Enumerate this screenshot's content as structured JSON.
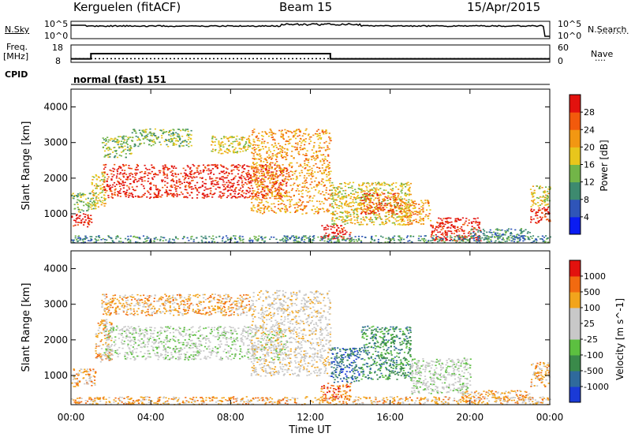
{
  "header": {
    "station": "Kerguelen (fitACF)",
    "beam": "Beam 15",
    "date": "15/Apr/2015"
  },
  "strip_labels": {
    "nsky": "N.Sky",
    "nsky_top": "10^5",
    "nsky_bottom": "10^0",
    "nsearch": "N.Search",
    "nsearch_top": "10^5",
    "nsearch_bottom": "10^0",
    "freq": "Freq.",
    "freq_unit": "[MHz]",
    "freq_top": "18",
    "freq_bottom": "8",
    "nave": "Nave",
    "nave_top": "60",
    "nave_bottom": "0",
    "cpid": "CPID",
    "cpid_value": "normal (fast) 151"
  },
  "chart_data": [
    {
      "type": "heatmap",
      "name": "power",
      "ylabel": "Slant Range [km]",
      "xlabel": "",
      "xlim": [
        0,
        24
      ],
      "ylim": [
        180,
        4500
      ],
      "yticks": [
        1000,
        2000,
        3000,
        4000
      ],
      "colorbar": {
        "label": "Power [dB]",
        "ticks": [
          "4",
          "8",
          "12",
          "16",
          "20",
          "24",
          "28"
        ],
        "colors": [
          "#0a1cf2",
          "#2f55b8",
          "#3d8a6f",
          "#72b548",
          "#e8c61c",
          "#f29712",
          "#f25a0c",
          "#e2120e"
        ]
      },
      "scatter_regions": [
        {
          "t": [
            0.0,
            1.0
          ],
          "r": [
            650,
            1050
          ],
          "level": 7
        },
        {
          "t": [
            0.0,
            1.2
          ],
          "r": [
            1050,
            1600
          ],
          "level": 3
        },
        {
          "t": [
            1.0,
            1.7
          ],
          "r": [
            1200,
            2200
          ],
          "level": 4
        },
        {
          "t": [
            1.6,
            10.8
          ],
          "r": [
            1450,
            2400
          ],
          "level": 7
        },
        {
          "t": [
            1.5,
            3.0
          ],
          "r": [
            2600,
            3200
          ],
          "level": 3
        },
        {
          "t": [
            3.0,
            6.0
          ],
          "r": [
            2900,
            3400
          ],
          "level": 3
        },
        {
          "t": [
            7.0,
            9.0
          ],
          "r": [
            2700,
            3200
          ],
          "level": 4
        },
        {
          "t": [
            9.0,
            13.0
          ],
          "r": [
            1000,
            3400
          ],
          "level": 5
        },
        {
          "t": [
            12.5,
            14.0
          ],
          "r": [
            300,
            700
          ],
          "level": 7
        },
        {
          "t": [
            13.0,
            17.0
          ],
          "r": [
            700,
            1900
          ],
          "level": 4
        },
        {
          "t": [
            14.5,
            16.5
          ],
          "r": [
            1000,
            1600
          ],
          "level": 6
        },
        {
          "t": [
            16.5,
            18.0
          ],
          "r": [
            700,
            1400
          ],
          "level": 5
        },
        {
          "t": [
            18.0,
            20.5
          ],
          "r": [
            250,
            900
          ],
          "level": 7
        },
        {
          "t": [
            20.0,
            23.0
          ],
          "r": [
            280,
            600
          ],
          "level": 2
        },
        {
          "t": [
            23.0,
            24.0
          ],
          "r": [
            750,
            1200
          ],
          "level": 7
        },
        {
          "t": [
            23.0,
            24.0
          ],
          "r": [
            1200,
            1800
          ],
          "level": 4
        },
        {
          "t": [
            0.0,
            24.0
          ],
          "r": [
            200,
            400
          ],
          "level": 2
        }
      ]
    },
    {
      "type": "heatmap",
      "name": "velocity",
      "ylabel": "Slant Range [km]",
      "xlabel": "Time UT",
      "xlim": [
        0,
        24
      ],
      "ylim": [
        180,
        4500
      ],
      "yticks": [
        1000,
        2000,
        3000,
        4000
      ],
      "xticks": [
        "00:00",
        "04:00",
        "08:00",
        "12:00",
        "16:00",
        "20:00",
        "00:00"
      ],
      "colorbar": {
        "label": "Velocity [m s^-1]",
        "ticks": [
          "1000",
          "500",
          "100",
          "25",
          "-25",
          "-100",
          "-500",
          "-1000"
        ],
        "colors": [
          "#1a3ad6",
          "#2f6a9c",
          "#3a8a4a",
          "#5cc040",
          "#c8c8c8",
          "#c8c8c8",
          "#f2a41c",
          "#f26a10",
          "#e2120e"
        ]
      },
      "scatter_regions": [
        {
          "t": [
            0.0,
            1.2
          ],
          "r": [
            700,
            1200
          ],
          "level": 6
        },
        {
          "t": [
            1.2,
            2.0
          ],
          "r": [
            1400,
            2600
          ],
          "level": 6
        },
        {
          "t": [
            1.6,
            10.8
          ],
          "r": [
            1450,
            2400
          ],
          "level": 4
        },
        {
          "t": [
            1.5,
            9.0
          ],
          "r": [
            2700,
            3300
          ],
          "level": 6
        },
        {
          "t": [
            9.0,
            13.0
          ],
          "r": [
            1000,
            3400
          ],
          "level": 5
        },
        {
          "t": [
            12.5,
            14.0
          ],
          "r": [
            350,
            800
          ],
          "level": 7
        },
        {
          "t": [
            13.0,
            14.5
          ],
          "r": [
            800,
            1800
          ],
          "level": 1
        },
        {
          "t": [
            14.5,
            17.0
          ],
          "r": [
            900,
            2400
          ],
          "level": 2
        },
        {
          "t": [
            17.0,
            20.0
          ],
          "r": [
            500,
            1500
          ],
          "level": 4
        },
        {
          "t": [
            19.5,
            23.0
          ],
          "r": [
            280,
            600
          ],
          "level": 6
        },
        {
          "t": [
            23.0,
            24.0
          ],
          "r": [
            700,
            1400
          ],
          "level": 6
        },
        {
          "t": [
            0.0,
            24.0
          ],
          "r": [
            200,
            420
          ],
          "level": 6
        }
      ]
    }
  ],
  "strip_data": {
    "xlim": [
      0,
      24
    ],
    "freq_steps": [
      {
        "t": 0.0,
        "f": 10.0
      },
      {
        "t": 1.0,
        "f": 13.0
      },
      {
        "t": 13.0,
        "f": 10.0
      },
      {
        "t": 24.0,
        "f": 10.0
      }
    ],
    "nave_level": 12.5
  }
}
